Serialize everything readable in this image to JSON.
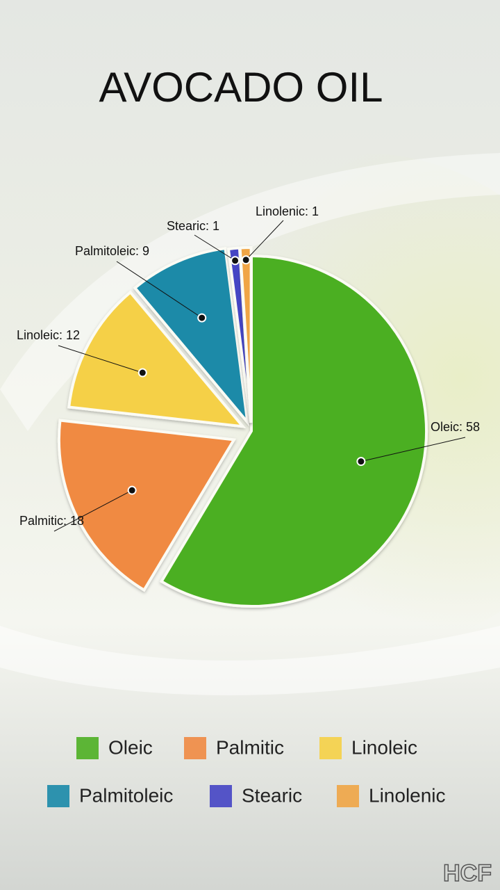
{
  "chart_data": {
    "type": "pie",
    "title": "AVOCADO OIL",
    "categories": [
      "Oleic",
      "Palmitic",
      "Linoleic",
      "Palmitoleic",
      "Stearic",
      "Linolenic"
    ],
    "values": [
      58,
      18,
      12,
      9,
      1,
      1
    ],
    "value_labels": [
      "Oleic: 58",
      "Palmitic: 18",
      "Linoleic: 12",
      "Palmitoleic: 9",
      "Stearic: 1",
      "Linolenic: 1"
    ],
    "colors": [
      "#4caf22",
      "#f08a42",
      "#f5d046",
      "#1a8aa8",
      "#4545c4",
      "#f0a545"
    ],
    "legend": "bottom",
    "watermark": "HCF"
  }
}
